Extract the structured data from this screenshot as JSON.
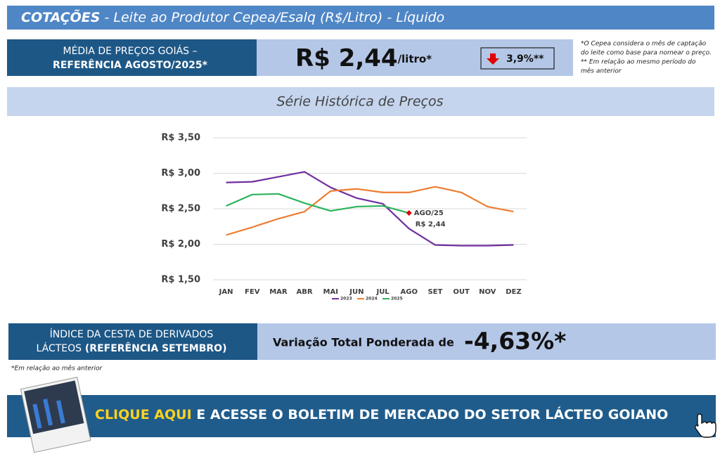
{
  "header": {
    "title": "COTAÇÕES",
    "subtitle": " - Leite ao Produtor Cepea/Esalq (R$/Litro) - Líquido"
  },
  "price": {
    "label_lines": [
      "MÉDIA DE PREÇOS GOIÁS –",
      "REFERÊNCIA AGOSTO/2025*"
    ],
    "value": "R$ 2,44",
    "unit": "/litro*",
    "change": "3,9%**",
    "notes": [
      "*O Cepea considera o mês de captação",
      "do leite como base para nomear o preço.",
      "** Em relação ao mesmo período do",
      "mês anterior"
    ]
  },
  "chart_data": {
    "type": "line",
    "title": "Série Histórica de Preços",
    "categories": [
      "JAN",
      "FEV",
      "MAR",
      "ABR",
      "MAI",
      "JUN",
      "JUL",
      "AGO",
      "SET",
      "OUT",
      "NOV",
      "DEZ"
    ],
    "series": [
      {
        "name": "2023",
        "color": "#7030a0",
        "values": [
          2.87,
          2.88,
          2.95,
          3.02,
          2.8,
          2.65,
          2.57,
          2.22,
          1.99,
          1.98,
          1.98,
          1.99
        ]
      },
      {
        "name": "2024",
        "color": "#ed7d31",
        "values": [
          2.13,
          2.24,
          2.36,
          2.46,
          2.75,
          2.78,
          2.73,
          2.73,
          2.81,
          2.73,
          2.53,
          2.46
        ]
      },
      {
        "name": "2025",
        "color": "#2db35a",
        "values": [
          2.54,
          2.7,
          2.71,
          2.58,
          2.47,
          2.53,
          2.54,
          2.44,
          null,
          null,
          null,
          null
        ]
      }
    ],
    "ylim": [
      1.5,
      3.5
    ],
    "yticks": [
      {
        "value": 1.5,
        "label": "R$ 1,50"
      },
      {
        "value": 2,
        "label": "R$ 2,00"
      },
      {
        "value": 2.5,
        "label": "R$ 2,50"
      },
      {
        "value": 3,
        "label": "R$ 3,00"
      },
      {
        "value": 3.5,
        "label": "R$ 3,50"
      }
    ],
    "grid": true,
    "legend": "bottom",
    "annotations": [
      "AGO/25",
      "R$ 2,44"
    ],
    "annotation_color": "#e00000"
  },
  "index": {
    "label_lines": [
      "ÍNDICE DA CESTA DE DERIVADOS",
      "LÁCTEOS",
      " (REFERÊNCIA SETEMBRO)"
    ],
    "text": "Variação Total Ponderada de",
    "value": "-4,63%*",
    "note": "*Em relação ao mês anterior"
  },
  "banner": {
    "highlight": "CLIQUE AQUI",
    "text": " E ACESSE O BOLETIM DE MERCADO DO SETOR LÁCTEO GOIANO"
  }
}
